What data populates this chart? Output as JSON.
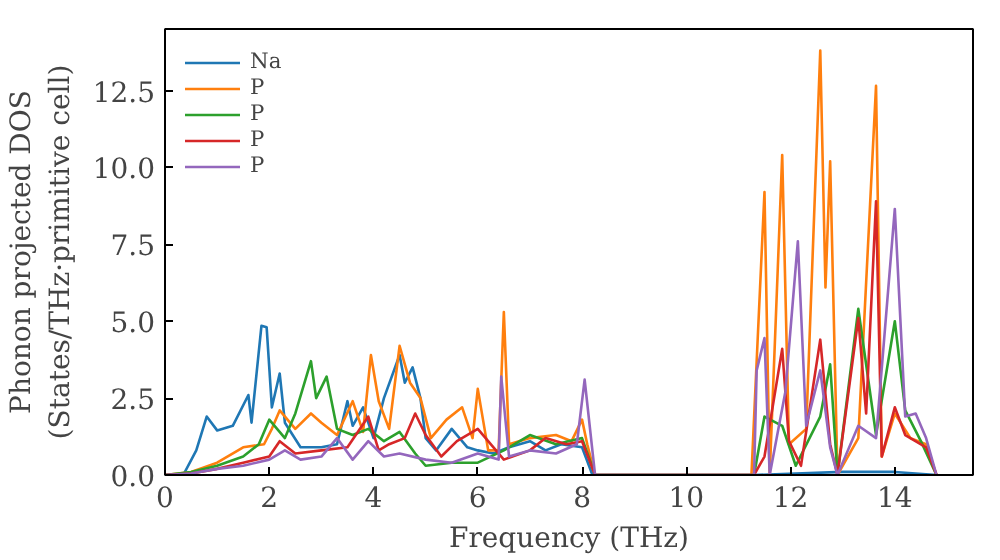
{
  "chart_data": {
    "type": "line",
    "xlabel": "Frequency (THz)",
    "ylabel": "Phonon projected DOS\n(States/THz·primitive cell)",
    "xlim": [
      0,
      15.5
    ],
    "ylim": [
      0,
      14.5
    ],
    "xticks": [
      0,
      2,
      4,
      6,
      8,
      10,
      12,
      14
    ],
    "yticks": [
      {
        "value": 0,
        "label": "0.0"
      },
      {
        "value": 2.5,
        "label": "2.5"
      },
      {
        "value": 5,
        "label": "5.0"
      },
      {
        "value": 7.5,
        "label": "7.5"
      },
      {
        "value": 10,
        "label": "10.0"
      },
      {
        "value": 12.5,
        "label": "12.5"
      }
    ],
    "legend": "top left",
    "grid": false,
    "marker": "none",
    "line_style": "solid",
    "series": [
      {
        "name": "Na",
        "color": "#1f77b4",
        "x": [
          0,
          0.35,
          0.6,
          0.8,
          1.0,
          1.3,
          1.6,
          1.66,
          1.85,
          1.95,
          2.05,
          2.2,
          2.3,
          2.6,
          3.0,
          3.3,
          3.5,
          3.6,
          3.8,
          4.0,
          4.2,
          4.5,
          4.6,
          4.75,
          4.9,
          5.0,
          5.2,
          5.5,
          5.8,
          6.0,
          6.3,
          6.6,
          7.0,
          7.3,
          7.6,
          8.0,
          8.2,
          11.3,
          13.0,
          14.0,
          14.8
        ],
        "values": [
          0,
          0,
          0.8,
          1.9,
          1.45,
          1.6,
          2.6,
          1.7,
          4.85,
          4.8,
          2.2,
          3.3,
          1.7,
          0.9,
          0.9,
          1.0,
          2.4,
          1.6,
          2.2,
          1.2,
          2.5,
          3.9,
          3.0,
          3.5,
          2.5,
          1.2,
          0.8,
          1.5,
          0.9,
          0.8,
          0.7,
          0.9,
          1.1,
          0.8,
          1.0,
          0.9,
          0,
          0,
          0.1,
          0.1,
          0
        ]
      },
      {
        "name": "P",
        "color": "#ff7f0e",
        "x": [
          0,
          0.5,
          1.0,
          1.5,
          1.9,
          2.05,
          2.2,
          2.5,
          2.8,
          3.0,
          3.3,
          3.6,
          3.8,
          3.95,
          4.1,
          4.3,
          4.5,
          4.7,
          4.9,
          5.1,
          5.4,
          5.7,
          5.9,
          6.0,
          6.2,
          6.4,
          6.5,
          6.6,
          7.0,
          7.5,
          7.8,
          8.0,
          8.1,
          8.25,
          11.25,
          11.35,
          11.5,
          11.6,
          11.84,
          11.97,
          12.3,
          12.57,
          12.67,
          12.76,
          12.9,
          13.3,
          13.64,
          13.75,
          14.0,
          14.3,
          14.6,
          14.8
        ],
        "values": [
          0,
          0.1,
          0.4,
          0.9,
          1.0,
          1.5,
          2.1,
          1.5,
          2.0,
          1.7,
          1.3,
          2.4,
          1.4,
          3.9,
          2.4,
          1.5,
          4.2,
          3.0,
          2.5,
          1.2,
          1.8,
          2.2,
          1.2,
          2.8,
          0.8,
          0.8,
          5.3,
          1.0,
          1.2,
          1.3,
          1.1,
          1.8,
          1.0,
          0,
          0,
          3.7,
          9.2,
          0,
          10.4,
          1.0,
          1.5,
          13.8,
          6.1,
          10.2,
          0,
          1.2,
          12.65,
          0.6,
          2.0,
          1.2,
          1.0,
          0
        ]
      },
      {
        "name": "P",
        "color": "#2ca02c",
        "x": [
          0,
          0.5,
          1.0,
          1.5,
          1.8,
          2.0,
          2.3,
          2.5,
          2.8,
          2.9,
          3.1,
          3.3,
          3.6,
          3.9,
          4.2,
          4.5,
          4.8,
          5.0,
          5.5,
          6.0,
          6.5,
          7.0,
          7.5,
          8.0,
          8.25,
          11.3,
          11.5,
          11.84,
          12.1,
          12.57,
          12.76,
          12.9,
          13.3,
          13.64,
          14.0,
          14.2,
          14.5,
          14.8
        ],
        "values": [
          0,
          0.1,
          0.3,
          0.6,
          1.0,
          1.8,
          1.2,
          2.0,
          3.7,
          2.5,
          3.2,
          1.5,
          1.3,
          1.5,
          1.1,
          1.4,
          0.7,
          0.3,
          0.4,
          0.4,
          0.8,
          1.3,
          1.0,
          1.2,
          0,
          0,
          1.9,
          1.6,
          0.3,
          1.9,
          3.6,
          0,
          5.4,
          1.3,
          5.0,
          2.1,
          1.1,
          0
        ]
      },
      {
        "name": "P",
        "color": "#d62728",
        "x": [
          0,
          0.5,
          1.0,
          1.5,
          2.0,
          2.2,
          2.5,
          3.0,
          3.5,
          3.9,
          4.1,
          4.3,
          4.6,
          4.8,
          5.0,
          5.3,
          5.6,
          6.0,
          6.5,
          7.0,
          7.3,
          7.7,
          8.0,
          8.25,
          11.3,
          11.5,
          11.84,
          11.97,
          12.2,
          12.57,
          12.76,
          12.9,
          13.3,
          13.45,
          13.64,
          13.75,
          14.0,
          14.2,
          14.6,
          14.8
        ],
        "values": [
          0,
          0.05,
          0.2,
          0.4,
          0.6,
          1.1,
          0.7,
          0.8,
          0.9,
          1.9,
          0.8,
          1.0,
          1.2,
          2.0,
          1.3,
          0.6,
          1.1,
          1.5,
          0.5,
          0.8,
          1.2,
          1.0,
          1.1,
          0,
          0,
          0.6,
          4.1,
          1.1,
          0.3,
          4.4,
          1.0,
          0,
          5.1,
          2.0,
          8.9,
          0.6,
          2.2,
          1.3,
          0.9,
          0
        ]
      },
      {
        "name": "P",
        "color": "#9467bd",
        "x": [
          0,
          0.5,
          1.0,
          1.5,
          2.0,
          2.3,
          2.6,
          3.0,
          3.3,
          3.6,
          3.9,
          4.2,
          4.5,
          5.0,
          5.5,
          6.0,
          6.4,
          6.45,
          6.6,
          7.0,
          7.5,
          7.9,
          8.05,
          8.25,
          11.3,
          11.35,
          11.5,
          11.6,
          11.9,
          12.14,
          12.3,
          12.57,
          12.76,
          12.9,
          13.3,
          13.64,
          14.0,
          14.2,
          14.4,
          14.6,
          14.8
        ],
        "values": [
          0,
          0.05,
          0.2,
          0.3,
          0.5,
          0.8,
          0.5,
          0.6,
          1.2,
          0.5,
          1.1,
          0.6,
          0.7,
          0.5,
          0.4,
          0.7,
          0.5,
          3.2,
          0.6,
          0.8,
          0.7,
          1.0,
          3.1,
          0,
          0,
          3.4,
          4.45,
          0,
          2.7,
          7.6,
          1.6,
          3.4,
          0.9,
          0,
          1.6,
          1.2,
          8.65,
          1.9,
          2.0,
          1.2,
          0
        ]
      }
    ]
  }
}
